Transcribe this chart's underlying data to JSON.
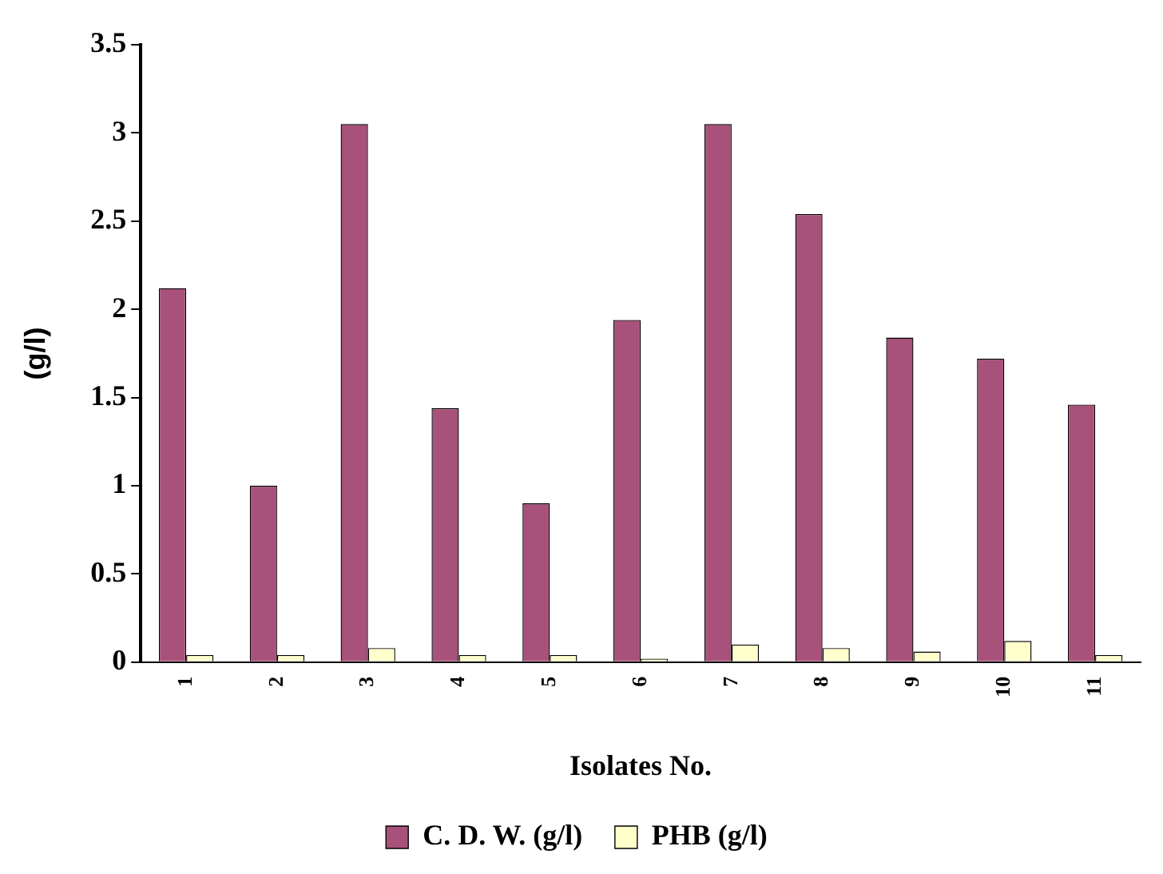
{
  "chart_data": {
    "type": "bar",
    "xlabel": "Isolates No.",
    "ylabel": "(g/l)",
    "categories": [
      "1",
      "2",
      "3",
      "4",
      "5",
      "6",
      "7",
      "8",
      "9",
      "10",
      "11"
    ],
    "series": [
      {
        "name": "C. D. W. (g/l)",
        "color": "#a8517a",
        "values": [
          2.12,
          1.0,
          3.05,
          1.44,
          0.9,
          1.94,
          3.05,
          2.54,
          1.84,
          1.72,
          1.46
        ]
      },
      {
        "name": "PHB (g/l)",
        "color": "#ffffcc",
        "values": [
          0.04,
          0.04,
          0.08,
          0.04,
          0.04,
          0.02,
          0.1,
          0.08,
          0.06,
          0.12,
          0.04
        ]
      }
    ],
    "ylim": [
      0,
      3.5
    ],
    "yticks": [
      0,
      0.5,
      1,
      1.5,
      2,
      2.5,
      3,
      3.5
    ],
    "grid": false,
    "legend": "bottom"
  }
}
